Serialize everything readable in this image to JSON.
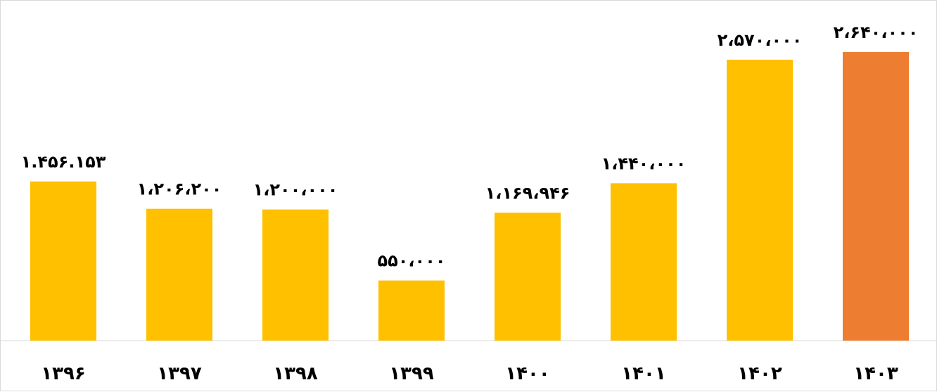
{
  "chart_data": {
    "type": "bar",
    "categories": [
      "۱۳۹۶",
      "۱۳۹۷",
      "۱۳۹۸",
      "۱۳۹۹",
      "۱۴۰۰",
      "۱۴۰۱",
      "۱۴۰۲",
      "۱۴۰۳"
    ],
    "values": [
      1456153,
      1206200,
      1200000,
      550000,
      1169946,
      1440000,
      2570000,
      2640000
    ],
    "data_labels": [
      "۱.۴۵۶.۱۵۳",
      "۱،۲۰۶،۲۰۰",
      "۱،۲۰۰،۰۰۰",
      "۵۵۰،۰۰۰",
      "۱،۱۶۹،۹۴۶",
      "۱،۴۴۰،۰۰۰",
      "۲،۵۷۰،۰۰۰",
      "۲،۶۴۰،۰۰۰"
    ],
    "bar_colors": [
      "#FFC000",
      "#FFC000",
      "#FFC000",
      "#FFC000",
      "#FFC000",
      "#FFC000",
      "#FFC000",
      "#ED7D31"
    ],
    "title": "",
    "xlabel": "",
    "ylabel": "",
    "ylim": [
      0,
      2640000
    ],
    "grid": false,
    "legend": "none"
  }
}
